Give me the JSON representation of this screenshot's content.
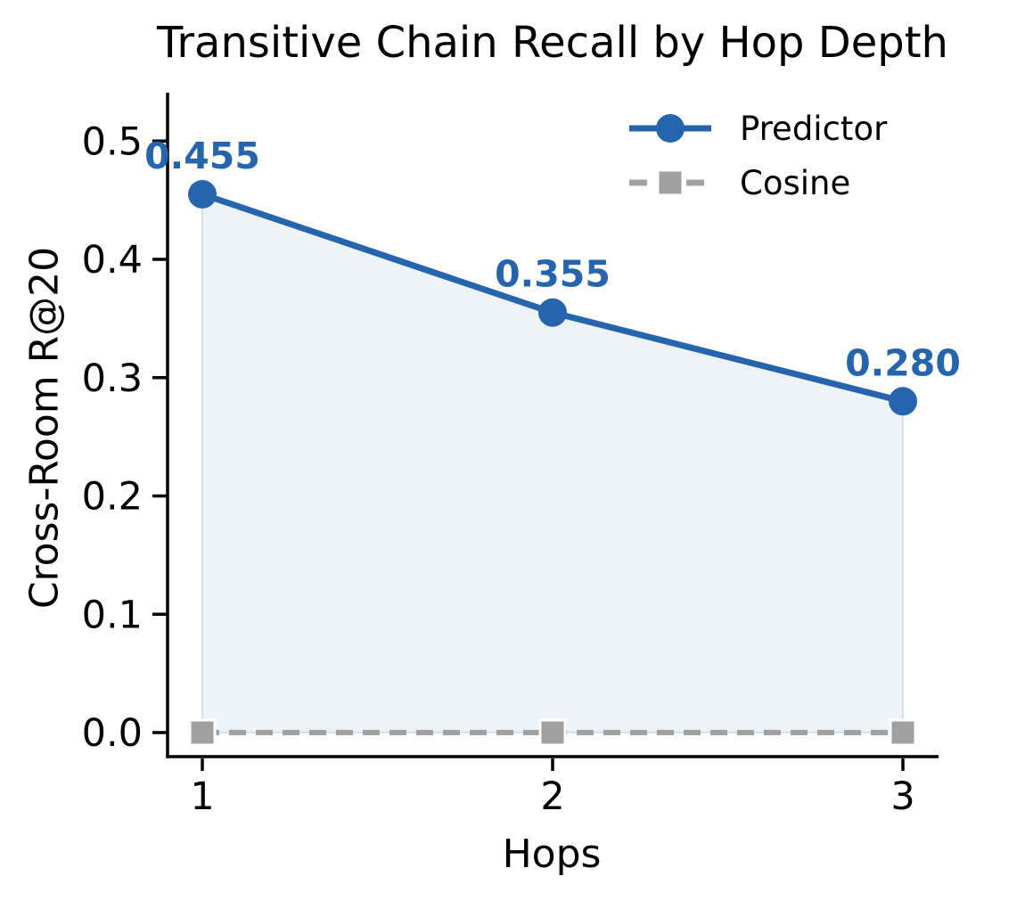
{
  "title": "Transitive Chain Recall by Hop Depth",
  "axes": {
    "xlabel": "Hops",
    "ylabel": "Cross-Room R@20",
    "xticks": [
      "1",
      "2",
      "3"
    ],
    "yticks": [
      "0.0",
      "0.1",
      "0.2",
      "0.3",
      "0.4",
      "0.5"
    ],
    "ytick_values": [
      0.0,
      0.1,
      0.2,
      0.3,
      0.4,
      0.5
    ]
  },
  "legend": [
    {
      "label": "Predictor",
      "marker": "circle",
      "linestyle": "solid"
    },
    {
      "label": "Cosine",
      "marker": "square",
      "linestyle": "dashed"
    }
  ],
  "colors": {
    "blue": "#2665ad",
    "gray": "#a0a0a0",
    "fill": "rgba(38,101,173,0.08)",
    "fill_edge": "rgba(38,101,173,0.16)",
    "marker_edge": "#ffffff",
    "axis": "#000000",
    "text": "#000000"
  },
  "chart_data": {
    "type": "line",
    "title": "Transitive Chain Recall by Hop Depth",
    "xlabel": "Hops",
    "ylabel": "Cross-Room R@20",
    "x": [
      1,
      2,
      3
    ],
    "series": [
      {
        "name": "Predictor",
        "values": [
          0.455,
          0.355,
          0.28
        ],
        "point_labels": [
          "0.455",
          "0.355",
          "0.280"
        ],
        "color": "#2665ad",
        "marker": "circle",
        "linestyle": "solid",
        "fill_to_zero": true
      },
      {
        "name": "Cosine",
        "values": [
          0.0,
          0.0,
          0.0
        ],
        "point_labels": [],
        "color": "#a0a0a0",
        "marker": "square",
        "linestyle": "dashed",
        "fill_to_zero": false
      }
    ],
    "xlim": [
      0.9,
      3.1
    ],
    "ylim": [
      -0.02,
      0.54
    ],
    "grid": false,
    "legend_position": "upper right"
  }
}
